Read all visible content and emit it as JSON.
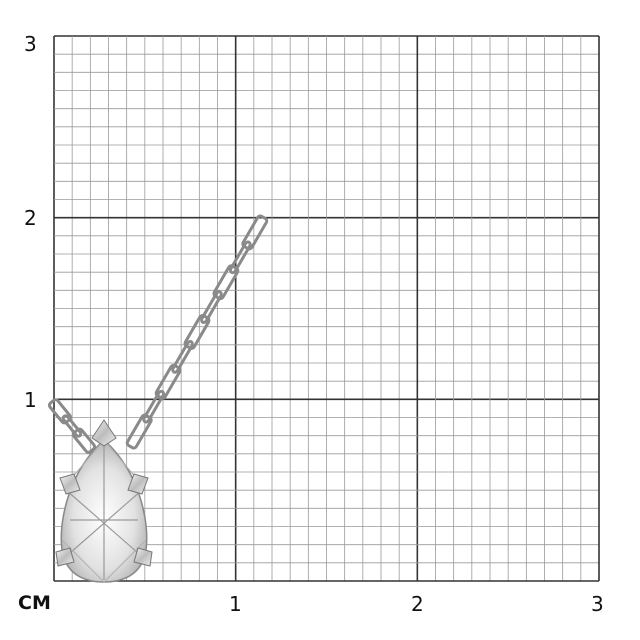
{
  "scale": {
    "unit_label": "CM",
    "x_ticks": [
      "1",
      "2",
      "3"
    ],
    "y_ticks": [
      "1",
      "2",
      "3"
    ],
    "range_cm": [
      0,
      3
    ],
    "minor_divisions_per_cm": 10
  },
  "product": {
    "metal_color": "#d9d9d9"
  },
  "colors": {
    "major_grid": "#333333",
    "minor_grid": "#9a9a9a"
  }
}
